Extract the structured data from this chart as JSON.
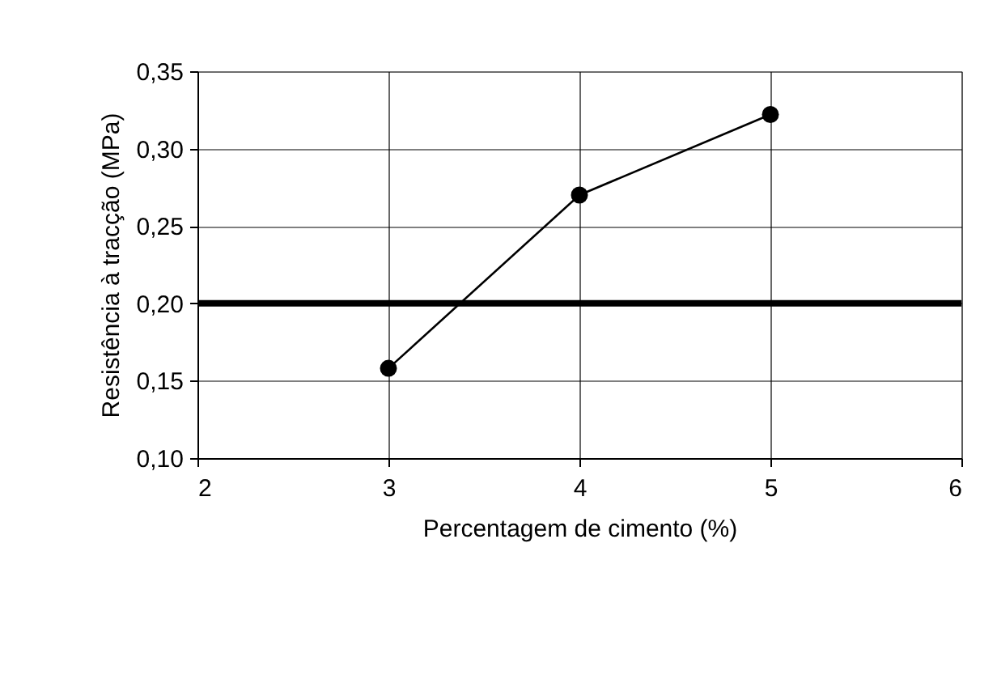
{
  "chart_data": {
    "type": "line",
    "xlabel": "Percentagem de cimento (%)",
    "ylabel": "Resistência à tracção (MPa)",
    "x": [
      3,
      4,
      5
    ],
    "series": [
      {
        "color": "#000000",
        "values": [
          0.158,
          0.27,
          0.322
        ]
      }
    ],
    "xlim": [
      2,
      6
    ],
    "xticks": [
      2,
      3,
      4,
      5,
      6
    ],
    "ylim": [
      0.1,
      0.35
    ],
    "yticks": [
      {
        "value": 0.1,
        "label": "0,10"
      },
      {
        "value": 0.15,
        "label": "0,15"
      },
      {
        "value": 0.2,
        "label": "0,20"
      },
      {
        "value": 0.25,
        "label": "0,25"
      },
      {
        "value": 0.3,
        "label": "0,30"
      },
      {
        "value": 0.35,
        "label": "0,35"
      }
    ],
    "ref_lines": [
      {
        "axis": "y",
        "value": 0.2,
        "color": "#000000"
      }
    ],
    "grid": true,
    "marker": "circle",
    "line_style": "solid"
  }
}
